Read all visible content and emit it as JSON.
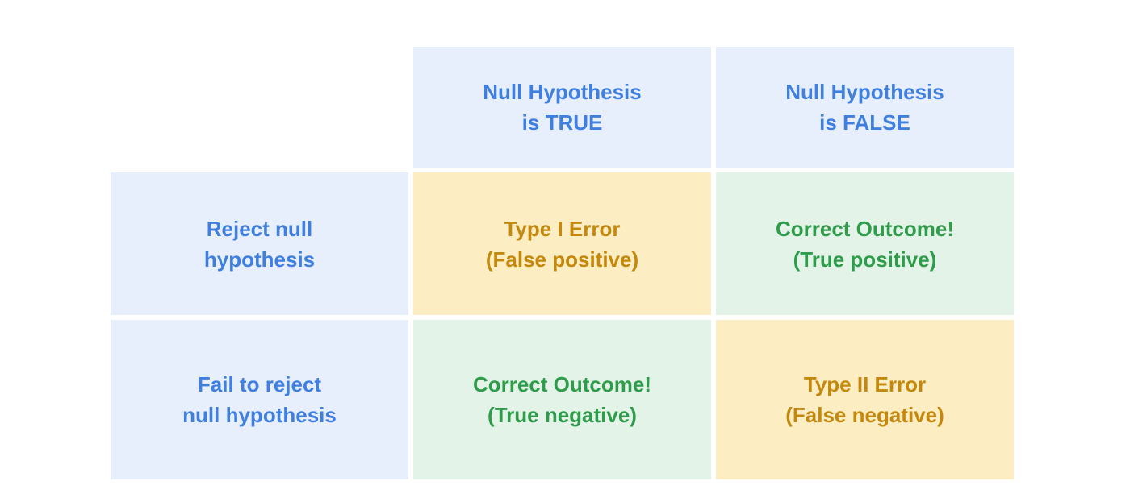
{
  "table": {
    "columns": [
      {
        "lines": [
          "Null Hypothesis",
          "is TRUE"
        ]
      },
      {
        "lines": [
          "Null Hypothesis",
          "is FALSE"
        ]
      }
    ],
    "rows": [
      {
        "header": {
          "lines": [
            "Reject null",
            "hypothesis"
          ]
        },
        "cells": [
          {
            "lines": [
              "Type I Error",
              "(False positive)"
            ]
          },
          {
            "lines": [
              "Correct Outcome!",
              "(True positive)"
            ]
          }
        ]
      },
      {
        "header": {
          "lines": [
            "Fail to reject",
            "null hypothesis"
          ]
        },
        "cells": [
          {
            "lines": [
              "Correct Outcome!",
              "(True negative)"
            ]
          },
          {
            "lines": [
              "Type II Error",
              "(False negative)"
            ]
          }
        ]
      }
    ]
  }
}
